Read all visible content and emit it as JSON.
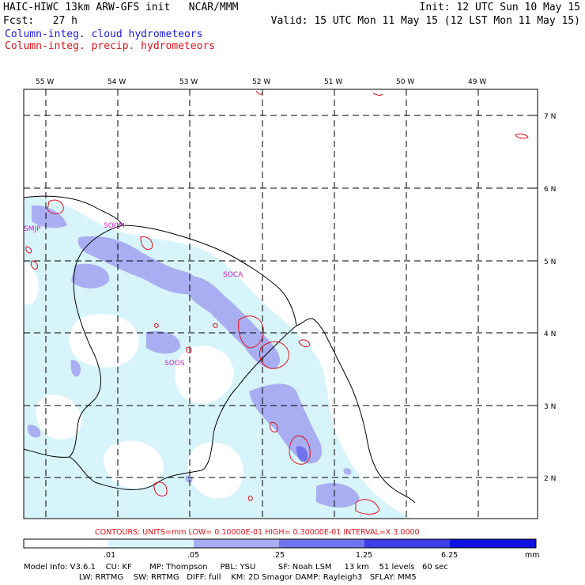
{
  "header": {
    "model_line": "HAIC-HIWC 13km ARW-GFS init   NCAR/MMM",
    "init": "Init: 12 UTC Sun 10 May 15",
    "fcst": "Fcst:   27 h",
    "valid": "Valid: 15 UTC Mon 11 May 15 (12 LST Mon 11 May 15)",
    "field_cloud": "Column-integ. cloud hydrometeors",
    "field_precip": "Column-integ. precip. hydrometeors"
  },
  "colors": {
    "cloud_text": "#1a1ae0",
    "precip_text": "#e0101a",
    "coast": "#000000",
    "grid": "#000000",
    "station_label": "#d020d0",
    "precip_contour": "#e0101a",
    "shade_1": "#d8f4fb",
    "shade_2": "#a9aef2",
    "shade_3": "#6f73ec",
    "shade_4": "#3b3ee6",
    "shade_5": "#1010e0"
  },
  "map": {
    "lon_labels": [
      "55 W",
      "54 W",
      "53 W",
      "52 W",
      "51 W",
      "50 W",
      "49 W"
    ],
    "lat_labels": [
      "7 N",
      "6 N",
      "5 N",
      "4 N",
      "3 N",
      "2 N"
    ],
    "stations": [
      "SMJP",
      "SOCM",
      "SOCA",
      "SOOS"
    ]
  },
  "contour_info": "CONTOURS:  UNITS=mm  LOW= 0.10000E-01  HIGH= 0.30000E-01  INTERVAL=X  3.0000",
  "colorbar": {
    "ticks": [
      ".01",
      ".05",
      ".25",
      "1.25",
      "6.25"
    ],
    "units": "mm"
  },
  "model_info": {
    "line1": "Model Info: V3.6.1    CU: KF       MP: Thompson     PBL: YSU         SF: Noah LSM     13 km    51 levels   60 sec",
    "line2": "                      LW: RRTMG    SW: RRTMG   DIFF: full    KM: 2D Smagor DAMP: Rayleigh3   SFLAY: MM5"
  }
}
